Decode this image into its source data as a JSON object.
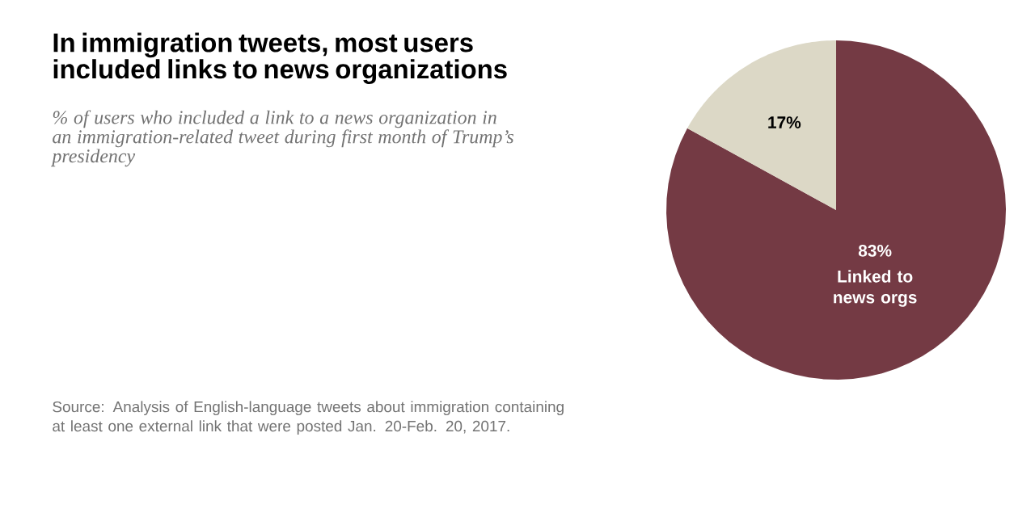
{
  "chart_data": {
    "type": "pie",
    "title": "In immigration tweets, most users included links to news organizations",
    "subtitle": "% of users who included a link to a news organization in an immigration-related tweet during first month of Trump’s presidency",
    "categories": [
      "Linked to news orgs",
      null
    ],
    "values": [
      83,
      17
    ],
    "value_labels": [
      "83%",
      "17%"
    ],
    "colors": [
      "#743a44",
      "#dcd8c6"
    ],
    "annotations": [
      "Source: Analysis of English-language tweets about immigration containing at least one external link that were posted Jan. 20-Feb. 20, 2017."
    ]
  }
}
